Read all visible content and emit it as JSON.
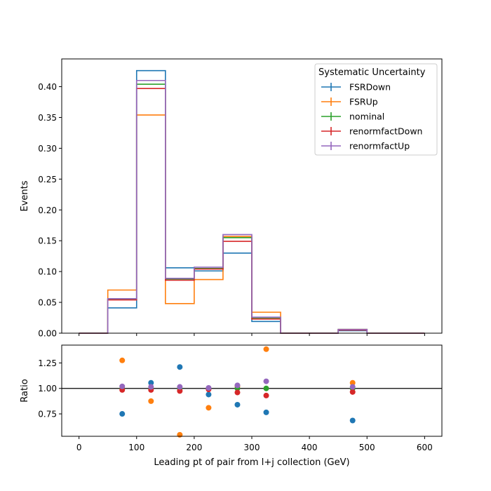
{
  "chart_data": [
    {
      "type": "step-histogram",
      "ylabel": "Events",
      "xlim": [
        -30,
        630
      ],
      "ylim": [
        0,
        0.445
      ],
      "x_ticks": [
        0,
        100,
        200,
        300,
        400,
        500,
        600
      ],
      "y_ticks": [
        0.0,
        0.05,
        0.1,
        0.15,
        0.2,
        0.25,
        0.3,
        0.35,
        0.4
      ],
      "y_tick_labels": [
        "0.00",
        "0.05",
        "0.10",
        "0.15",
        "0.20",
        "0.25",
        "0.30",
        "0.35",
        "0.40"
      ],
      "bin_edges": [
        0,
        50,
        100,
        150,
        200,
        250,
        300,
        350,
        400,
        450,
        500,
        550,
        600
      ],
      "legend": {
        "title": "Systematic Uncertainty",
        "placement": "top-right"
      },
      "series": [
        {
          "name": "FSRDown",
          "color": "#1f77b4",
          "values": [
            0,
            0.041,
            0.426,
            0.106,
            0.101,
            0.13,
            0.019,
            0,
            0,
            0.004,
            0,
            0
          ]
        },
        {
          "name": "FSRUp",
          "color": "#ff7f0e",
          "values": [
            0,
            0.07,
            0.354,
            0.048,
            0.087,
            0.157,
            0.034,
            0,
            0,
            0.006,
            0,
            0
          ]
        },
        {
          "name": "nominal",
          "color": "#2ca02c",
          "values": [
            0,
            0.055,
            0.404,
            0.088,
            0.105,
            0.155,
            0.025,
            0,
            0,
            0.006,
            0,
            0
          ]
        },
        {
          "name": "renormfactDown",
          "color": "#d62728",
          "values": [
            0,
            0.054,
            0.397,
            0.086,
            0.104,
            0.149,
            0.023,
            0,
            0,
            0.005,
            0,
            0
          ]
        },
        {
          "name": "renormfactUp",
          "color": "#9467bd",
          "values": [
            0,
            0.056,
            0.41,
            0.089,
            0.107,
            0.16,
            0.026,
            0,
            0,
            0.006,
            0,
            0
          ]
        }
      ]
    },
    {
      "type": "scatter",
      "xlabel": "Leading pt of pair from l+j collection (GeV)",
      "ylabel": "Ratio",
      "xlim": [
        -30,
        630
      ],
      "ylim": [
        0.53,
        1.425
      ],
      "x_ticks": [
        0,
        100,
        200,
        300,
        400,
        500,
        600
      ],
      "y_ticks": [
        0.75,
        1.0,
        1.25
      ],
      "y_tick_labels": [
        "0.75",
        "1.00",
        "1.25"
      ],
      "reference_line": 1.0,
      "x": [
        75,
        125,
        175,
        225,
        275,
        325,
        475
      ],
      "series": [
        {
          "name": "FSRDown",
          "color": "#1f77b4",
          "values": [
            0.75,
            1.055,
            1.21,
            0.94,
            0.84,
            0.765,
            0.685
          ]
        },
        {
          "name": "FSRUp",
          "color": "#ff7f0e",
          "values": [
            1.275,
            0.875,
            0.545,
            0.81,
            1.02,
            1.385,
            1.055
          ]
        },
        {
          "name": "nominal",
          "color": "#2ca02c",
          "values": [
            1.0,
            1.0,
            1.0,
            1.0,
            1.0,
            1.0,
            1.0
          ]
        },
        {
          "name": "renormfactDown",
          "color": "#d62728",
          "values": [
            0.985,
            0.985,
            0.975,
            0.99,
            0.96,
            0.93,
            0.965
          ]
        },
        {
          "name": "renormfactUp",
          "color": "#9467bd",
          "values": [
            1.02,
            1.015,
            1.015,
            1.005,
            1.03,
            1.07,
            1.015
          ]
        }
      ]
    }
  ]
}
